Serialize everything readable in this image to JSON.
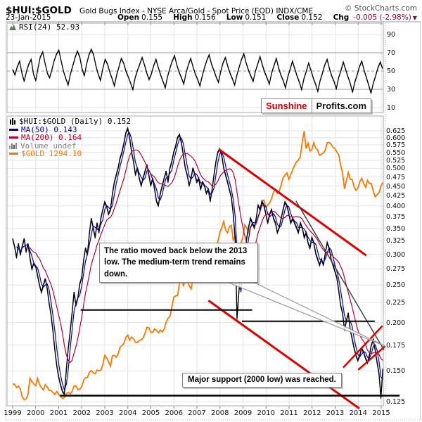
{
  "header": {
    "symbol": "$HUI:$GOLD",
    "description": "Gold Bugs Index - NYSE Arca/Gold - Spot Price (EOD) INDX/CME",
    "source": "© StockCharts.com",
    "date": "23-Jan-2015",
    "ohlc": [
      {
        "label": "Open",
        "value": "0.155"
      },
      {
        "label": "High",
        "value": "0.156"
      },
      {
        "label": "Low",
        "value": "0.151"
      },
      {
        "label": "Close",
        "value": "0.152"
      }
    ],
    "chg_label": "Chg",
    "chg_value": "-0.005 (-2.98%)",
    "chg_color": "#990033"
  },
  "logo": {
    "part1": "Sunshine",
    "part2": "Profits.com",
    "part1_color": "#cc0000"
  },
  "rsi_panel": {
    "label": "RSI(24) 52.93"
  },
  "main_panel": {
    "legend": [
      {
        "glyph": "candlesticks-icon",
        "label": "$HUI:$GOLD (Daily) 0.152",
        "color": "#000000"
      },
      {
        "glyph": "dash",
        "label": "MA(50) 0.143",
        "color": "#0000bb"
      },
      {
        "glyph": "dash",
        "label": "MA(200) 0.164",
        "color": "#bb0033"
      },
      {
        "glyph": "volume-bars-icon",
        "label": "Volume undef",
        "color": "#888888"
      },
      {
        "glyph": "dash",
        "label": "$GOLD 1294.10",
        "color": "#ff7700"
      }
    ]
  },
  "annotations": {
    "box1": {
      "text": "The ratio moved back below the 2013 low. The medium-term trend remains down."
    },
    "box2": {
      "text": "Major support (2000 low) was reached."
    }
  },
  "chart_data": [
    {
      "type": "line",
      "panel": "rsi",
      "title": "RSI(24)",
      "last_value": 52.93,
      "ylim": [
        0,
        100
      ],
      "y_ticks": [
        90,
        70,
        50,
        30,
        10
      ],
      "overbought": 70,
      "oversold": 30,
      "midline": 50,
      "x_start": 1999.0,
      "x_end": 2015.06,
      "values": [
        52,
        46,
        55,
        61,
        48,
        39,
        50,
        58,
        63,
        47,
        40,
        54,
        66,
        71,
        59,
        48,
        43,
        52,
        62,
        69,
        73,
        61,
        50,
        42,
        35,
        47,
        56,
        65,
        72,
        66,
        53,
        45,
        58,
        68,
        74,
        68,
        56,
        47,
        40,
        53,
        63,
        58,
        49,
        42,
        34,
        46,
        55,
        64,
        59,
        50,
        44,
        37,
        30,
        43,
        51,
        58,
        65,
        57,
        48,
        41,
        47,
        56,
        63,
        54,
        46,
        39,
        32,
        44,
        53,
        61,
        67,
        57,
        49,
        43,
        36,
        48,
        57,
        64,
        55,
        47,
        41,
        34,
        45,
        54,
        62,
        68,
        58,
        51,
        44,
        38,
        50,
        59,
        65,
        56,
        48,
        42,
        35,
        46,
        55,
        63,
        69,
        59,
        51,
        45,
        39,
        50,
        58,
        66,
        57,
        49,
        43,
        36,
        48,
        56,
        64,
        54,
        46,
        40,
        32,
        44,
        52,
        61,
        53,
        45,
        38,
        30,
        42,
        50,
        59,
        51,
        43,
        36,
        28,
        40,
        48,
        57,
        63,
        53,
        45,
        39,
        31,
        43,
        51,
        60,
        52,
        44,
        37,
        27,
        38,
        46,
        55,
        61,
        51,
        43,
        35,
        26,
        37,
        45,
        54,
        60,
        53
      ]
    },
    {
      "type": "line",
      "panel": "main",
      "title": "$HUI:$GOLD (Daily)",
      "yscale": "log",
      "ylim": [
        0.119,
        0.66
      ],
      "y_ticks": [
        0.625,
        0.6,
        0.575,
        0.55,
        0.525,
        0.5,
        0.475,
        0.45,
        0.425,
        0.4,
        0.375,
        0.35,
        0.325,
        0.3,
        0.275,
        0.25,
        0.225,
        0.2,
        0.175,
        0.15,
        0.125
      ],
      "x_ticks": [
        1999,
        2000,
        2001,
        2002,
        2003,
        2004,
        2005,
        2006,
        2007,
        2008,
        2009,
        2010,
        2011,
        2012,
        2013,
        2014,
        2015
      ],
      "x_start": 1999.0,
      "x_end": 2015.07,
      "series": [
        {
          "name": "$HUI:$GOLD",
          "color": "#000000",
          "last": 0.152,
          "values": [
            0.33,
            0.315,
            0.295,
            0.32,
            0.3,
            0.315,
            0.33,
            0.305,
            0.32,
            0.295,
            0.275,
            0.285,
            0.28,
            0.265,
            0.25,
            0.24,
            0.25,
            0.26,
            0.245,
            0.225,
            0.21,
            0.19,
            0.17,
            0.155,
            0.145,
            0.138,
            0.133,
            0.131,
            0.152,
            0.172,
            0.19,
            0.212,
            0.24,
            0.222,
            0.232,
            0.252,
            0.262,
            0.29,
            0.312,
            0.3,
            0.34,
            0.372,
            0.352,
            0.332,
            0.362,
            0.342,
            0.372,
            0.392,
            0.41,
            0.4,
            0.382,
            0.392,
            0.43,
            0.46,
            0.482,
            0.502,
            0.532,
            0.552,
            0.582,
            0.618,
            0.635,
            0.6,
            0.552,
            0.522,
            0.482,
            0.502,
            0.472,
            0.452,
            0.472,
            0.492,
            0.512,
            0.482,
            0.452,
            0.472,
            0.442,
            0.412,
            0.402,
            0.432,
            0.452,
            0.472,
            0.492,
            0.462,
            0.502,
            0.522,
            0.552,
            0.572,
            0.602,
            0.612,
            0.582,
            0.542,
            0.502,
            0.482,
            0.452,
            0.472,
            0.502,
            0.482,
            0.462,
            0.472,
            0.442,
            0.462,
            0.452,
            0.432,
            0.442,
            0.412,
            0.442,
            0.482,
            0.522,
            0.552,
            0.562,
            0.542,
            0.502,
            0.482,
            0.462,
            0.442,
            0.422,
            0.382,
            0.33,
            0.205,
            0.242,
            0.272,
            0.292,
            0.302,
            0.33,
            0.352,
            0.372,
            0.362,
            0.352,
            0.372,
            0.402,
            0.392,
            0.412,
            0.402,
            0.382,
            0.362,
            0.382,
            0.392,
            0.372,
            0.362,
            0.342,
            0.352,
            0.372,
            0.392,
            0.41,
            0.402,
            0.382,
            0.362,
            0.372,
            0.362,
            0.352,
            0.342,
            0.362,
            0.352,
            0.332,
            0.342,
            0.322,
            0.312,
            0.332,
            0.322,
            0.302,
            0.292,
            0.282,
            0.292,
            0.282,
            0.302,
            0.322,
            0.312,
            0.292,
            0.282,
            0.272,
            0.262,
            0.242,
            0.222,
            0.212,
            0.192,
            0.202,
            0.212,
            0.192,
            0.182,
            0.172,
            0.165,
            0.16,
            0.165,
            0.172,
            0.168,
            0.162,
            0.158,
            0.165,
            0.175,
            0.181,
            0.17,
            0.158,
            0.148,
            0.128,
            0.152
          ]
        },
        {
          "name": "MA(50)",
          "color": "#0000bb",
          "last": 0.143,
          "derived_from": "$HUI:$GOLD",
          "rolling_window": 3
        },
        {
          "name": "MA(200)",
          "color": "#bb0033",
          "last": 0.164,
          "derived_from": "$HUI:$GOLD",
          "rolling_window": 10
        },
        {
          "name": "$GOLD",
          "color": "#ff7700",
          "last": 1294.1,
          "own_scale": [
            252,
            1905
          ],
          "values": [
            287,
            287,
            280,
            283,
            277,
            261,
            256,
            257,
            266,
            300,
            293,
            288,
            284,
            300,
            286,
            280,
            275,
            286,
            281,
            274,
            274,
            270,
            266,
            272,
            266,
            262,
            258,
            260,
            267,
            270,
            267,
            272,
            283,
            283,
            276,
            276,
            282,
            296,
            301,
            302,
            314,
            318,
            313,
            310,
            319,
            317,
            319,
            333,
            356,
            350,
            340,
            328,
            355,
            356,
            351,
            360,
            378,
            383,
            390,
            407,
            414,
            399,
            408,
            403,
            393,
            392,
            398,
            400,
            405,
            420,
            439,
            438,
            424,
            423,
            434,
            429,
            421,
            430,
            424,
            433,
            456,
            470,
            476,
            510,
            550,
            555,
            557,
            611,
            675,
            596,
            634,
            623,
            599,
            585,
            627,
            632,
            631,
            665,
            655,
            680,
            667,
            655,
            665,
            672,
            715,
            755,
            806,
            834,
            890,
            922,
            968,
            910,
            889,
            930,
            940,
            839,
            871,
            731,
            760,
            822,
            858,
            943,
            924,
            890,
            928,
            946,
            934,
            949,
            996,
            1043,
            1127,
            1135,
            1078,
            1095,
            1113,
            1149,
            1205,
            1232,
            1193,
            1215,
            1271,
            1342,
            1370,
            1391,
            1327,
            1374,
            1424,
            1473,
            1511,
            1529,
            1573,
            1760,
            1900,
            1671,
            1739,
            1640,
            1656,
            1743,
            1674,
            1651,
            1586,
            1598,
            1615,
            1648,
            1744,
            1746,
            1726,
            1684,
            1671,
            1627,
            1593,
            1476,
            1393,
            1235,
            1313,
            1395,
            1327,
            1324,
            1253,
            1221,
            1244,
            1301,
            1336,
            1288,
            1250,
            1315,
            1285,
            1285,
            1216,
            1164,
            1182,
            1199,
            1260,
            1294
          ]
        }
      ],
      "trendlines": [
        {
          "name": "red-channel-upper",
          "x1": 2007.95,
          "v1": 0.56,
          "x2": 2014.35,
          "v2": 0.298,
          "color": "#dd0000",
          "width": 3
        },
        {
          "name": "red-channel-lower",
          "x1": 2007.5,
          "v1": 0.228,
          "x2": 2014.05,
          "v2": 0.12,
          "color": "#dd0000",
          "width": 3
        },
        {
          "name": "declining-resistance",
          "x1": 2011.3,
          "v1": 0.412,
          "x2": 2015.12,
          "v2": 0.17,
          "color": "#444444",
          "width": 1.5
        },
        {
          "name": "red-wedge-upper",
          "x1": 2013.35,
          "v1": 0.153,
          "x2": 2015.05,
          "v2": 0.196,
          "color": "#dd0000",
          "width": 2.5
        },
        {
          "name": "red-wedge-lower",
          "x1": 2014.0,
          "v1": 0.151,
          "x2": 2015.18,
          "v2": 0.174,
          "color": "#dd0000",
          "width": 2.5
        },
        {
          "name": "support-2002",
          "x1": 2001.95,
          "v1": 0.2155,
          "x2": 2009.4,
          "v2": 0.2155,
          "color": "#000000",
          "width": 2
        },
        {
          "name": "support-2008-low",
          "x1": 2008.95,
          "v1": 0.2015,
          "x2": 2014.72,
          "v2": 0.2015,
          "color": "#000000",
          "width": 2
        },
        {
          "name": "support-2000-low",
          "x1": 2001.05,
          "v1": 0.1295,
          "x2": 2015.8,
          "v2": 0.1295,
          "color": "#000000",
          "width": 2.5
        }
      ],
      "callout_pointer": {
        "points": [
          [
            2008.2,
            0.256
          ],
          [
            2009.35,
            0.256
          ],
          [
            2015.2,
            0.1735
          ]
        ],
        "stroke": "#999999",
        "fill": "#ffffff"
      }
    }
  ]
}
